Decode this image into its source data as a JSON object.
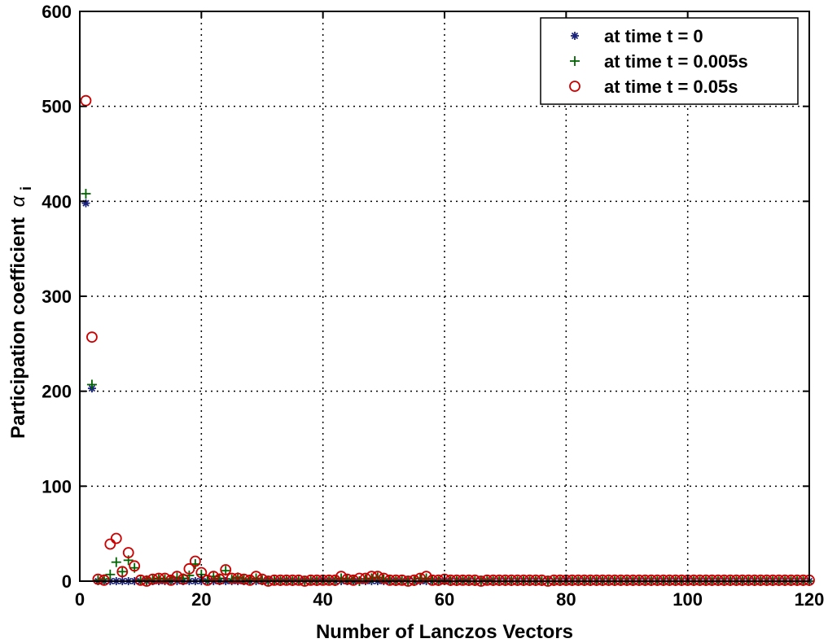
{
  "chart_data": {
    "type": "scatter",
    "title": "",
    "xlabel": "Number of Lanczos Vectors",
    "ylabel": "Participation coefficient",
    "ylabel_symbol": "α",
    "ylabel_subscript": "i",
    "xlim": [
      0,
      120
    ],
    "ylim": [
      0,
      600
    ],
    "x_ticks": [
      0,
      20,
      40,
      60,
      80,
      100,
      120
    ],
    "y_ticks": [
      0,
      100,
      200,
      300,
      400,
      500,
      600
    ],
    "grid": true,
    "legend_position": "top-right",
    "colors": {
      "series0": "#1a237e",
      "series1": "#006400",
      "series2": "#cc0000"
    },
    "series": [
      {
        "name": "at time t = 0",
        "marker": "asterisk",
        "x": [
          1,
          2,
          3,
          4,
          5,
          6,
          7,
          8,
          9,
          10,
          11,
          12,
          13,
          14,
          15,
          16,
          17,
          18,
          19,
          20,
          21,
          22,
          23,
          24,
          25,
          26,
          27,
          28,
          29,
          30,
          31,
          32,
          33,
          34,
          35,
          36,
          37,
          38,
          39,
          40,
          41,
          42,
          43,
          44,
          45,
          46,
          47,
          48,
          49,
          50,
          51,
          52,
          53,
          54,
          55,
          56,
          57,
          58,
          59,
          60,
          61,
          62,
          63,
          64,
          65,
          66,
          67,
          68,
          69,
          70,
          71,
          72,
          73,
          74,
          75,
          76,
          77,
          78,
          79,
          80,
          81,
          82,
          83,
          84,
          85,
          86,
          87,
          88,
          89,
          90,
          91,
          92,
          93,
          94,
          95,
          96,
          97,
          98,
          99,
          100,
          101,
          102,
          103,
          104,
          105,
          106,
          107,
          108,
          109,
          110,
          111,
          112,
          113,
          114,
          115,
          116,
          117,
          118,
          119,
          120
        ],
        "y": [
          398,
          203,
          0,
          0,
          0,
          0,
          0,
          0,
          0,
          0,
          0,
          0,
          0,
          0,
          0,
          0,
          0,
          0,
          0,
          0,
          0,
          0,
          0,
          0,
          0,
          0,
          0,
          0,
          0,
          0,
          0,
          0,
          0,
          0,
          0,
          0,
          0,
          0,
          0,
          0,
          0,
          0,
          0,
          0,
          0,
          0,
          0,
          0,
          0,
          0,
          0,
          0,
          0,
          0,
          0,
          0,
          0,
          0,
          0,
          0,
          0,
          0,
          0,
          0,
          0,
          0,
          0,
          0,
          0,
          0,
          0,
          0,
          0,
          0,
          0,
          0,
          0,
          0,
          0,
          0,
          0,
          0,
          0,
          0,
          0,
          0,
          0,
          0,
          0,
          0,
          0,
          0,
          0,
          0,
          0,
          0,
          0,
          0,
          0,
          0,
          0,
          0,
          0,
          0,
          0,
          0,
          0,
          0,
          0,
          0,
          0,
          0,
          0,
          0,
          0,
          0,
          0,
          0,
          0,
          0
        ]
      },
      {
        "name": "at time t = 0.005s",
        "marker": "plus",
        "x": [
          1,
          2,
          3,
          4,
          5,
          6,
          7,
          8,
          9,
          10,
          11,
          12,
          13,
          14,
          15,
          16,
          17,
          18,
          19,
          20,
          21,
          22,
          23,
          24,
          25,
          26,
          27,
          28,
          29,
          30,
          31,
          32,
          33,
          34,
          35,
          36,
          37,
          38,
          39,
          40,
          41,
          42,
          43,
          44,
          45,
          46,
          47,
          48,
          49,
          50,
          51,
          52,
          53,
          54,
          55,
          56,
          57,
          58,
          59,
          60,
          61,
          62,
          63,
          64,
          65,
          66,
          67,
          68,
          69,
          70,
          71,
          72,
          73,
          74,
          75,
          76,
          77,
          78,
          79,
          80,
          81,
          82,
          83,
          84,
          85,
          86,
          87,
          88,
          89,
          90,
          91,
          92,
          93,
          94,
          95,
          96,
          97,
          98,
          99,
          100,
          101,
          102,
          103,
          104,
          105,
          106,
          107,
          108,
          109,
          110,
          111,
          112,
          113,
          114,
          115,
          116,
          117,
          118,
          119,
          120
        ],
        "y": [
          408,
          207,
          1,
          2,
          7,
          20,
          10,
          22,
          14,
          1,
          1,
          2,
          3,
          2,
          1,
          4,
          3,
          6,
          18,
          7,
          1,
          5,
          3,
          11,
          2,
          4,
          2,
          1,
          3,
          1,
          0,
          1,
          0,
          1,
          0,
          1,
          0,
          1,
          0,
          1,
          1,
          0,
          3,
          2,
          1,
          0,
          2,
          3,
          4,
          2,
          1,
          0,
          1,
          0,
          0,
          3,
          3,
          1,
          0,
          1,
          0,
          0,
          1,
          0,
          0,
          0,
          1,
          0,
          0,
          0,
          0,
          0,
          0,
          0,
          0,
          0,
          0,
          0,
          0,
          0,
          0,
          0,
          0,
          0,
          0,
          0,
          0,
          0,
          0,
          0,
          0,
          0,
          0,
          0,
          0,
          0,
          0,
          0,
          0,
          0,
          0,
          0,
          0,
          0,
          0,
          0,
          0,
          0,
          0,
          0,
          0,
          0,
          0,
          0,
          0,
          0,
          0,
          0,
          0,
          0
        ]
      },
      {
        "name": "at time t = 0.05s",
        "marker": "circle",
        "x": [
          1,
          2,
          3,
          4,
          5,
          6,
          7,
          8,
          9,
          10,
          11,
          12,
          13,
          14,
          15,
          16,
          17,
          18,
          19,
          20,
          21,
          22,
          23,
          24,
          25,
          26,
          27,
          28,
          29,
          30,
          31,
          32,
          33,
          34,
          35,
          36,
          37,
          38,
          39,
          40,
          41,
          42,
          43,
          44,
          45,
          46,
          47,
          48,
          49,
          50,
          51,
          52,
          53,
          54,
          55,
          56,
          57,
          58,
          59,
          60,
          61,
          62,
          63,
          64,
          65,
          66,
          67,
          68,
          69,
          70,
          71,
          72,
          73,
          74,
          75,
          76,
          77,
          78,
          79,
          80,
          81,
          82,
          83,
          84,
          85,
          86,
          87,
          88,
          89,
          90,
          91,
          92,
          93,
          94,
          95,
          96,
          97,
          98,
          99,
          100,
          101,
          102,
          103,
          104,
          105,
          106,
          107,
          108,
          109,
          110,
          111,
          112,
          113,
          114,
          115,
          116,
          117,
          118,
          119,
          120
        ],
        "y": [
          506,
          257,
          2,
          1,
          39,
          45,
          10,
          30,
          16,
          1,
          0,
          2,
          3,
          3,
          1,
          5,
          2,
          13,
          21,
          9,
          1,
          5,
          2,
          12,
          3,
          3,
          2,
          1,
          5,
          2,
          0,
          1,
          1,
          1,
          1,
          1,
          0,
          1,
          1,
          1,
          1,
          1,
          5,
          2,
          1,
          3,
          3,
          5,
          5,
          3,
          1,
          1,
          1,
          0,
          1,
          3,
          5,
          1,
          1,
          2,
          1,
          1,
          1,
          1,
          1,
          0,
          1,
          1,
          1,
          1,
          1,
          1,
          1,
          1,
          1,
          1,
          0,
          1,
          1,
          1,
          1,
          1,
          1,
          1,
          1,
          1,
          1,
          1,
          1,
          1,
          1,
          1,
          1,
          1,
          1,
          1,
          1,
          1,
          1,
          1,
          1,
          1,
          1,
          1,
          1,
          1,
          1,
          1,
          1,
          1,
          1,
          1,
          1,
          1,
          1,
          1,
          1,
          1,
          1,
          1
        ]
      }
    ]
  }
}
